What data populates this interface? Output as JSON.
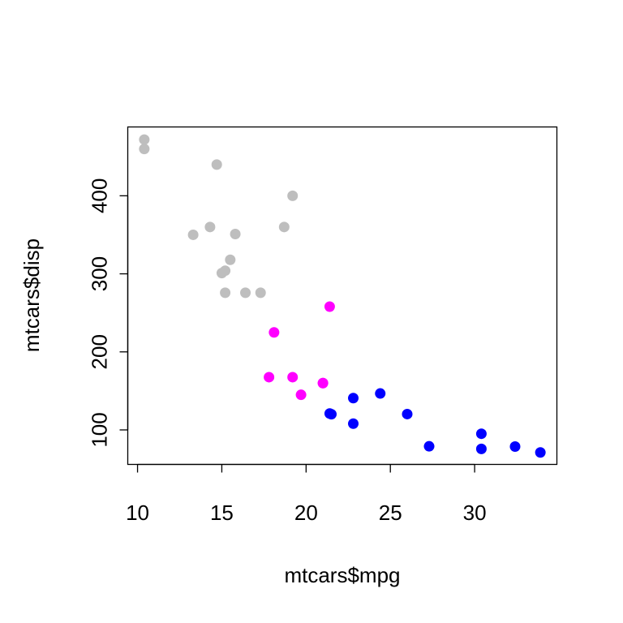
{
  "chart_data": {
    "type": "scatter",
    "title": "",
    "xlabel": "mtcars$mpg",
    "ylabel": "mtcars$disp",
    "xlim": [
      9.42,
      34.88
    ],
    "ylim": [
      55.8,
      488.2
    ],
    "x_ticks": [
      10,
      15,
      20,
      25,
      30
    ],
    "y_ticks": [
      100,
      200,
      300,
      400
    ],
    "grid": false,
    "legend": "none",
    "colors": {
      "gray": "#bebebe",
      "magenta": "#ff00ff",
      "blue": "#0000ff"
    },
    "series": [
      {
        "color": "#bebebe",
        "points": [
          {
            "x": 10.4,
            "y": 472
          },
          {
            "x": 10.4,
            "y": 460
          },
          {
            "x": 14.7,
            "y": 440
          },
          {
            "x": 19.2,
            "y": 400
          },
          {
            "x": 14.3,
            "y": 360
          },
          {
            "x": 18.7,
            "y": 360
          },
          {
            "x": 13.3,
            "y": 350
          },
          {
            "x": 15.8,
            "y": 351
          },
          {
            "x": 15.5,
            "y": 318
          },
          {
            "x": 15.2,
            "y": 304
          },
          {
            "x": 15.0,
            "y": 301
          },
          {
            "x": 15.2,
            "y": 275.8
          },
          {
            "x": 16.4,
            "y": 275.8
          },
          {
            "x": 17.3,
            "y": 275.8
          }
        ]
      },
      {
        "color": "#ff00ff",
        "points": [
          {
            "x": 21.4,
            "y": 258
          },
          {
            "x": 18.1,
            "y": 225
          },
          {
            "x": 17.8,
            "y": 167.6
          },
          {
            "x": 19.2,
            "y": 167.6
          },
          {
            "x": 21.0,
            "y": 160
          },
          {
            "x": 21.0,
            "y": 160
          },
          {
            "x": 19.7,
            "y": 145
          }
        ]
      },
      {
        "color": "#0000ff",
        "points": [
          {
            "x": 24.4,
            "y": 146.7
          },
          {
            "x": 22.8,
            "y": 140.8
          },
          {
            "x": 21.5,
            "y": 120.1
          },
          {
            "x": 21.4,
            "y": 121
          },
          {
            "x": 26.0,
            "y": 120.3
          },
          {
            "x": 22.8,
            "y": 108
          },
          {
            "x": 30.4,
            "y": 95.1
          },
          {
            "x": 27.3,
            "y": 79
          },
          {
            "x": 32.4,
            "y": 78.7
          },
          {
            "x": 30.4,
            "y": 75.7
          },
          {
            "x": 33.9,
            "y": 71.1
          }
        ]
      }
    ]
  }
}
